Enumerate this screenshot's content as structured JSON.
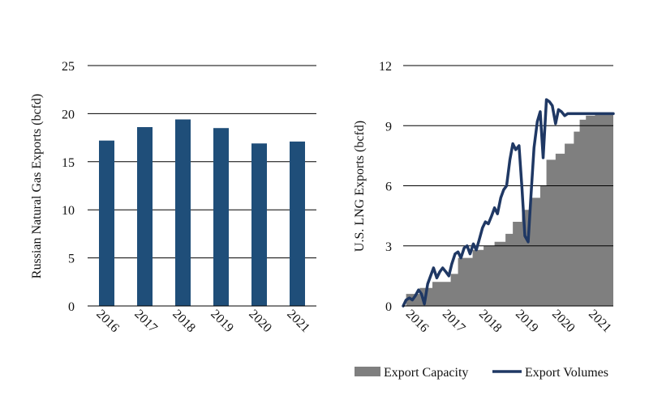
{
  "chart_data": [
    {
      "type": "bar",
      "title": "",
      "xlabel": "",
      "ylabel": "Russian Natural Gas Exports (bcfd)",
      "categories": [
        "2016",
        "2017",
        "2018",
        "2019",
        "2020",
        "2021"
      ],
      "values": [
        17.2,
        18.6,
        19.4,
        18.5,
        16.9,
        17.1
      ],
      "ylim": [
        0,
        25
      ],
      "yticks": [
        "0",
        "5",
        "10",
        "15",
        "20",
        "25"
      ],
      "grid": true,
      "colors": {
        "bar": "#1f4e79"
      }
    },
    {
      "type": "area",
      "title": "",
      "xlabel": "",
      "ylabel": "U.S. LNG Exports (bcfd)",
      "x_tick_labels": [
        "2016",
        "2017",
        "2018",
        "2019",
        "2020",
        "2021"
      ],
      "xlim": [
        2016,
        2021.75
      ],
      "ylim": [
        0,
        12
      ],
      "yticks": [
        "0",
        "3",
        "6",
        "9",
        "12"
      ],
      "grid": true,
      "legend_position": "bottom",
      "series": [
        {
          "name": "Export Capacity",
          "kind": "area",
          "color": "#7f7f7f",
          "x": [
            2016.0,
            2016.08,
            2016.08,
            2016.45,
            2016.45,
            2016.8,
            2016.8,
            2017.3,
            2017.3,
            2017.5,
            2017.5,
            2017.9,
            2017.9,
            2018.2,
            2018.2,
            2018.5,
            2018.5,
            2018.8,
            2018.8,
            2019.0,
            2019.0,
            2019.25,
            2019.25,
            2019.5,
            2019.5,
            2019.75,
            2019.75,
            2019.92,
            2019.92,
            2020.17,
            2020.17,
            2020.42,
            2020.42,
            2020.67,
            2020.67,
            2020.83,
            2020.83,
            2021.0,
            2021.0,
            2021.25,
            2021.25,
            2021.75
          ],
          "y": [
            0,
            0,
            0.6,
            0.6,
            0.9,
            0.9,
            1.2,
            1.2,
            1.6,
            1.6,
            2.4,
            2.4,
            2.8,
            2.8,
            3.0,
            3.0,
            3.2,
            3.2,
            3.6,
            3.6,
            4.2,
            4.2,
            4.8,
            4.8,
            5.4,
            5.4,
            6.0,
            6.0,
            7.3,
            7.3,
            7.6,
            7.6,
            8.1,
            8.1,
            8.7,
            8.7,
            9.3,
            9.3,
            9.5,
            9.5,
            9.6,
            9.6
          ]
        },
        {
          "name": "Export Volumes",
          "kind": "line",
          "color": "#1f3864",
          "x": [
            2016.0,
            2016.08,
            2016.17,
            2016.25,
            2016.33,
            2016.42,
            2016.5,
            2016.58,
            2016.67,
            2016.75,
            2016.83,
            2016.92,
            2017.0,
            2017.08,
            2017.17,
            2017.25,
            2017.33,
            2017.42,
            2017.5,
            2017.58,
            2017.67,
            2017.75,
            2017.83,
            2017.92,
            2018.0,
            2018.08,
            2018.17,
            2018.25,
            2018.33,
            2018.42,
            2018.5,
            2018.58,
            2018.67,
            2018.75,
            2018.83,
            2018.92,
            2019.0,
            2019.08,
            2019.17,
            2019.25,
            2019.33,
            2019.42,
            2019.5,
            2019.58,
            2019.67,
            2019.75,
            2019.83,
            2019.92,
            2020.0,
            2020.08,
            2020.17,
            2020.25,
            2020.33,
            2020.42,
            2020.5,
            2020.58,
            2020.67,
            2020.75,
            2020.83,
            2020.92,
            2021.0,
            2021.08,
            2021.17,
            2021.25,
            2021.33,
            2021.42,
            2021.5,
            2021.58,
            2021.67,
            2021.75
          ],
          "y": [
            0.0,
            0.3,
            0.4,
            0.3,
            0.5,
            0.8,
            0.6,
            0.1,
            1.1,
            1.5,
            1.9,
            1.4,
            1.7,
            1.9,
            1.7,
            1.5,
            2.1,
            2.6,
            2.7,
            2.4,
            2.9,
            3.0,
            2.6,
            3.1,
            2.8,
            3.3,
            3.9,
            4.2,
            4.1,
            4.5,
            4.9,
            4.6,
            5.4,
            5.8,
            6.0,
            7.3,
            8.1,
            7.8,
            8.0,
            5.9,
            3.5,
            3.2,
            5.6,
            7.9,
            9.2,
            9.7,
            7.4,
            10.3,
            10.2,
            10.0,
            9.1,
            9.8,
            9.7,
            9.5,
            9.6,
            9.6,
            9.6,
            9.6,
            9.6,
            9.6,
            9.6,
            9.6,
            9.6,
            9.6,
            9.6,
            9.6,
            9.6,
            9.6,
            9.6,
            9.6
          ]
        }
      ]
    }
  ]
}
